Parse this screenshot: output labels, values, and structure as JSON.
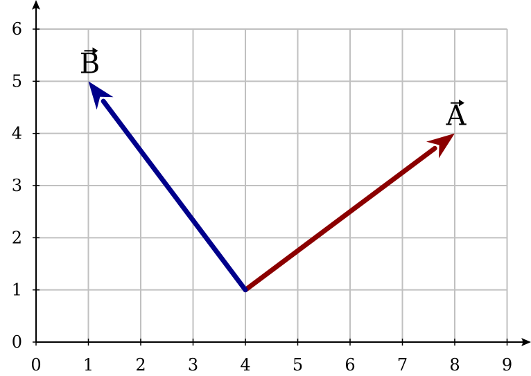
{
  "chart_data": {
    "type": "vector-plot",
    "xlim": [
      0,
      9
    ],
    "ylim": [
      0,
      6
    ],
    "x_ticks": [
      "0",
      "1",
      "2",
      "3",
      "4",
      "5",
      "6",
      "7",
      "8",
      "9"
    ],
    "y_ticks": [
      "0",
      "1",
      "2",
      "3",
      "4",
      "5",
      "6"
    ],
    "grid": true,
    "vectors": [
      {
        "label": "A",
        "from": [
          4,
          1
        ],
        "to": [
          8,
          4
        ],
        "color": "#8b0000"
      },
      {
        "label": "B",
        "from": [
          4,
          1
        ],
        "to": [
          1,
          5
        ],
        "color": "#00008b"
      }
    ]
  }
}
